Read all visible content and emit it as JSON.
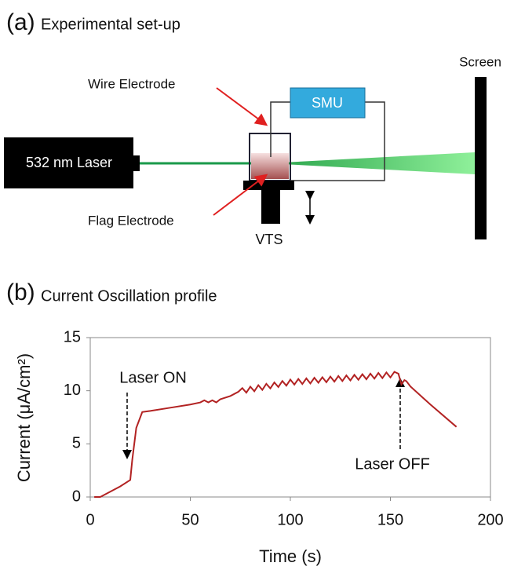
{
  "panel_a": {
    "label": "(a)",
    "title": "Experimental set-up",
    "laser": "532 nm Laser",
    "smu": "SMU",
    "wire_electrode": "Wire Electrode",
    "flag_electrode": "Flag Electrode",
    "vts": "VTS",
    "screen": "Screen"
  },
  "chart_data": {
    "type": "line",
    "panel_label": "(b)",
    "title": "Current Oscillation profile",
    "x_label": "Time (s)",
    "y_label": "Current (μA/cm²)",
    "color": "#b22222",
    "annotations": [
      "Laser ON",
      "Laser OFF"
    ],
    "x": [
      2,
      5,
      10,
      15,
      20,
      21,
      23,
      26,
      30,
      40,
      50,
      55,
      57,
      59,
      61,
      63,
      65,
      70,
      74,
      76,
      78,
      80,
      82,
      84,
      86,
      88,
      90,
      92,
      94,
      96,
      98,
      100,
      102,
      104,
      106,
      108,
      110,
      112,
      114,
      116,
      118,
      120,
      122,
      124,
      126,
      128,
      130,
      132,
      134,
      136,
      138,
      140,
      142,
      144,
      146,
      148,
      150,
      152,
      154,
      155.5,
      157,
      158,
      160,
      170,
      183
    ],
    "values": [
      0,
      0,
      0.5,
      1.0,
      1.6,
      3.5,
      6.5,
      8.0,
      8.1,
      8.4,
      8.7,
      8.9,
      9.1,
      8.9,
      9.1,
      8.9,
      9.2,
      9.5,
      9.9,
      10.25,
      9.82,
      10.38,
      9.95,
      10.52,
      10.08,
      10.65,
      10.22,
      10.78,
      10.35,
      10.92,
      10.48,
      11.05,
      10.58,
      11.11,
      10.63,
      11.16,
      10.69,
      11.22,
      10.75,
      11.27,
      10.8,
      11.33,
      10.86,
      11.39,
      10.91,
      11.44,
      10.97,
      11.5,
      11.03,
      11.55,
      11.08,
      11.61,
      11.14,
      11.67,
      11.19,
      11.72,
      11.25,
      11.78,
      11.6,
      10.6,
      11.0,
      10.9,
      10.4,
      8.7,
      6.6
    ],
    "xlim": [
      0,
      200
    ],
    "xticks": [
      0,
      50,
      100,
      150,
      200
    ],
    "ylim": [
      0,
      15
    ],
    "yticks": [
      0,
      5,
      10,
      15
    ],
    "grid": false
  }
}
